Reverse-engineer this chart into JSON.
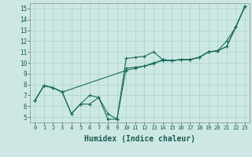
{
  "bg_color": "#cde8e4",
  "grid_color": "#b0d8d4",
  "line_color": "#1a6b5a",
  "xlabel": "Humidex (Indice chaleur)",
  "xlabel_fontsize": 7,
  "xlim": [
    -0.5,
    23.5
  ],
  "ylim": [
    4.5,
    15.5
  ],
  "xticks": [
    0,
    1,
    2,
    3,
    4,
    5,
    6,
    7,
    8,
    9,
    10,
    11,
    12,
    13,
    14,
    15,
    16,
    17,
    18,
    19,
    20,
    21,
    22,
    23
  ],
  "yticks": [
    5,
    6,
    7,
    8,
    9,
    10,
    11,
    12,
    13,
    14,
    15
  ],
  "line1_x": [
    0,
    1,
    2,
    3,
    4,
    5,
    6,
    7,
    8,
    9,
    10,
    11,
    12,
    13,
    14,
    15,
    16,
    17,
    18,
    19,
    20,
    21,
    22,
    23
  ],
  "line1_y": [
    6.5,
    7.9,
    7.7,
    7.3,
    5.3,
    6.2,
    7.0,
    6.8,
    4.8,
    4.8,
    10.4,
    10.5,
    10.6,
    11.0,
    10.3,
    10.2,
    10.3,
    10.3,
    10.5,
    11.0,
    11.1,
    12.0,
    13.3,
    15.2
  ],
  "line2_x": [
    0,
    1,
    2,
    3,
    4,
    5,
    6,
    7,
    8,
    9,
    10,
    11,
    12,
    13,
    14,
    15,
    16,
    17,
    18,
    19,
    20,
    21,
    22,
    23
  ],
  "line2_y": [
    6.5,
    7.9,
    7.7,
    7.3,
    5.3,
    6.2,
    6.2,
    6.8,
    5.3,
    4.8,
    9.5,
    9.6,
    9.7,
    9.9,
    10.3,
    10.2,
    10.3,
    10.3,
    10.5,
    11.0,
    11.1,
    11.5,
    13.3,
    15.2
  ],
  "line3_x": [
    0,
    1,
    2,
    3,
    10,
    11,
    12,
    13,
    14,
    15,
    16,
    17,
    18,
    19,
    20,
    21,
    22,
    23
  ],
  "line3_y": [
    6.5,
    7.9,
    7.7,
    7.3,
    9.3,
    9.5,
    9.7,
    10.0,
    10.2,
    10.2,
    10.3,
    10.3,
    10.5,
    11.0,
    11.1,
    11.5,
    13.3,
    15.2
  ]
}
